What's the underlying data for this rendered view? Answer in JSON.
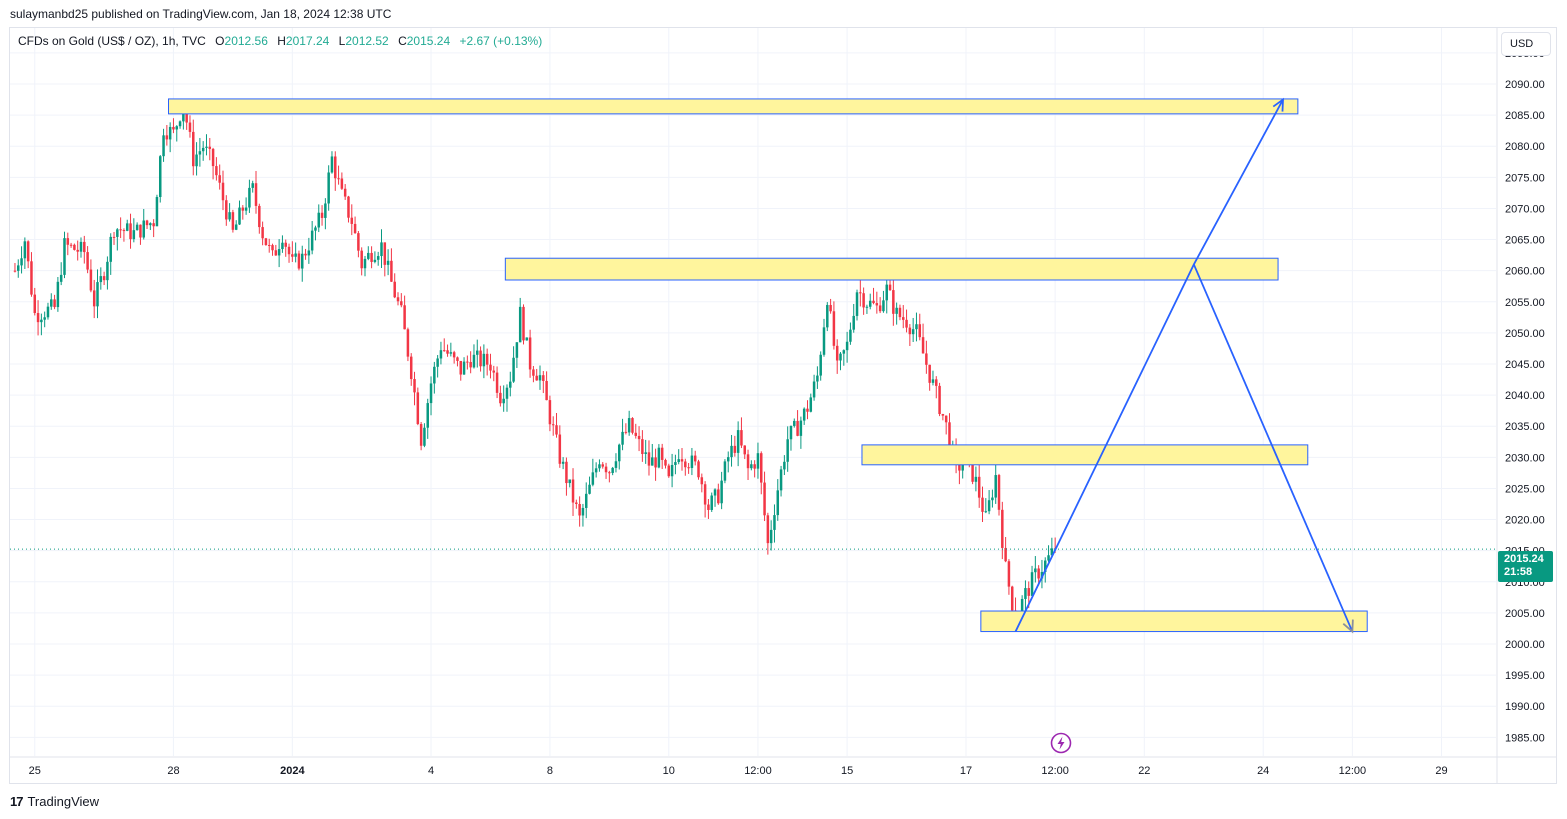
{
  "publish_line": "sulaymanbd25 published on TradingView.com, Jan 18, 2024 12:38 UTC",
  "symbol": {
    "name": "CFDs on Gold (US$ / OZ), 1h, TVC",
    "open_label": "O",
    "open": "2012.56",
    "high_label": "H",
    "high": "2017.24",
    "low_label": "L",
    "low": "2012.52",
    "close_label": "C",
    "close": "2015.24",
    "change": "+2.67 (+0.13%)"
  },
  "currency": "USD",
  "last_price": {
    "price": "2015.24",
    "countdown": "21:58"
  },
  "footer": {
    "logo": "17",
    "brand": "TradingView"
  },
  "icons": {
    "bolt": "lightning-bolt-icon",
    "logo": "tradingview-logo-icon"
  },
  "colors": {
    "up": "#089981",
    "down": "#f23645",
    "zone_fill": "#fff59d",
    "zone_border": "#2962ff",
    "arrow": "#2962ff",
    "last_price": "#089981"
  },
  "chart_data": {
    "type": "candlestick",
    "ylim": [
      1982,
      2099
    ],
    "y_ticks": [
      1985,
      1990,
      1995,
      2000,
      2005,
      2010,
      2015,
      2020,
      2025,
      2030,
      2035,
      2040,
      2045,
      2050,
      2055,
      2060,
      2065,
      2070,
      2075,
      2080,
      2085,
      2090,
      2095
    ],
    "y_tick_labels": [
      "1985.00",
      "1990.00",
      "1995.00",
      "2000.00",
      "2005.00",
      "2010.00",
      "2015.00",
      "2020.00",
      "2025.00",
      "2030.00",
      "2035.00",
      "2040.00",
      "2045.00",
      "2050.00",
      "2055.00",
      "2060.00",
      "2065.00",
      "2070.00",
      "2075.00",
      "2080.00",
      "2085.00",
      "2090.00",
      "2095.00"
    ],
    "x_ticks": [
      "25",
      "28",
      "2024",
      "4",
      "8",
      "10",
      "12:00",
      "15",
      "17",
      "12:00",
      "22",
      "24",
      "12:00",
      "29"
    ],
    "x_tick_index": [
      2,
      16,
      28,
      42,
      54,
      66,
      75,
      84,
      96,
      105,
      114,
      126,
      135,
      144
    ],
    "bar_count": 150,
    "last_bar_index": 105,
    "grid": true,
    "price_path": [
      [
        0,
        2060
      ],
      [
        1,
        2065
      ],
      [
        2,
        2053
      ],
      [
        4,
        2054
      ],
      [
        5,
        2064
      ],
      [
        7,
        2063
      ],
      [
        8,
        2055
      ],
      [
        9,
        2060
      ],
      [
        10,
        2067
      ],
      [
        12,
        2066
      ],
      [
        14,
        2068
      ],
      [
        15,
        2083
      ],
      [
        16,
        2082
      ],
      [
        17,
        2087
      ],
      [
        18,
        2078
      ],
      [
        19,
        2080
      ],
      [
        20,
        2077
      ],
      [
        22,
        2066
      ],
      [
        23,
        2070
      ],
      [
        24,
        2073
      ],
      [
        25,
        2066
      ],
      [
        26,
        2062
      ],
      [
        27,
        2066
      ],
      [
        28,
        2061
      ],
      [
        29,
        2062
      ],
      [
        31,
        2069
      ],
      [
        32,
        2078
      ],
      [
        33,
        2072
      ],
      [
        34,
        2068
      ],
      [
        35,
        2061
      ],
      [
        36,
        2063
      ],
      [
        37,
        2064
      ],
      [
        38,
        2058
      ],
      [
        39,
        2053
      ],
      [
        40,
        2044
      ],
      [
        41,
        2033
      ],
      [
        42,
        2042
      ],
      [
        43,
        2048
      ],
      [
        44,
        2046
      ],
      [
        45,
        2044
      ],
      [
        46,
        2046
      ],
      [
        48,
        2045
      ],
      [
        49,
        2040
      ],
      [
        50,
        2043
      ],
      [
        51,
        2053
      ],
      [
        52,
        2045
      ],
      [
        53,
        2043
      ],
      [
        55,
        2030
      ],
      [
        56,
        2025
      ],
      [
        57,
        2020
      ],
      [
        58,
        2025
      ],
      [
        59,
        2030
      ],
      [
        60,
        2028
      ],
      [
        61,
        2032
      ],
      [
        62,
        2035
      ],
      [
        63,
        2032
      ],
      [
        64,
        2029
      ],
      [
        65,
        2030
      ],
      [
        66,
        2026
      ],
      [
        67,
        2031
      ],
      [
        69,
        2028
      ],
      [
        70,
        2022
      ],
      [
        71,
        2024
      ],
      [
        72,
        2030
      ],
      [
        73,
        2033
      ],
      [
        74,
        2028
      ],
      [
        75,
        2030
      ],
      [
        76,
        2016
      ],
      [
        77,
        2025
      ],
      [
        78,
        2033
      ],
      [
        79,
        2035
      ],
      [
        80,
        2038
      ],
      [
        81,
        2043
      ],
      [
        82,
        2056
      ],
      [
        83,
        2044
      ],
      [
        84,
        2048
      ],
      [
        85,
        2057
      ],
      [
        86,
        2055
      ],
      [
        87,
        2054
      ],
      [
        88,
        2057
      ],
      [
        89,
        2053
      ],
      [
        90,
        2052
      ],
      [
        91,
        2050
      ],
      [
        92,
        2045
      ],
      [
        93,
        2040
      ],
      [
        94,
        2035
      ],
      [
        95,
        2028
      ],
      [
        96,
        2030
      ],
      [
        97,
        2026
      ],
      [
        98,
        2020
      ],
      [
        99,
        2027
      ],
      [
        100,
        2012
      ],
      [
        101,
        2004
      ],
      [
        102,
        2008
      ],
      [
        103,
        2011
      ],
      [
        104,
        2013
      ],
      [
        105,
        2015.24
      ]
    ],
    "zones": [
      {
        "bar_start": 16,
        "bar_end": 130,
        "top": 2087.6,
        "bottom": 2085.2
      },
      {
        "bar_start": 50,
        "bar_end": 128,
        "top": 2062.0,
        "bottom": 2058.5
      },
      {
        "bar_start": 86,
        "bar_end": 131,
        "top": 2032.0,
        "bottom": 2028.8
      },
      {
        "bar_start": 98,
        "bar_end": 137,
        "top": 2005.3,
        "bottom": 2002.0
      }
    ],
    "projection_path": [
      [
        101,
        2002
      ],
      [
        119,
        2061
      ],
      [
        128,
        2087.5
      ]
    ],
    "projection_path_2": [
      [
        119,
        2061
      ],
      [
        135,
        2002
      ]
    ],
    "last_price_line": 2015.24
  }
}
